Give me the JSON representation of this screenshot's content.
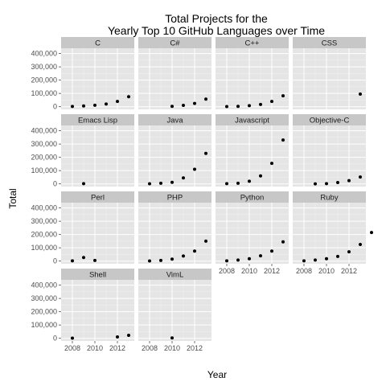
{
  "chart_data": {
    "type": "scatter",
    "title": "Total Projects for the\nYearly Top 10 GitHub Languages over Time",
    "xlabel": "Year",
    "ylabel": "Total",
    "xlim": [
      2007,
      2013.5
    ],
    "ylim": [
      -20000,
      440000
    ],
    "x_ticks": [
      2008,
      2010,
      2012
    ],
    "y_ticks": [
      0,
      100000,
      200000,
      300000,
      400000
    ],
    "y_tick_labels": [
      "0",
      "100,000",
      "200,000",
      "300,000",
      "400,000"
    ],
    "grid": true,
    "ncol": 4,
    "panels": [
      {
        "name": "C",
        "points": [
          [
            2008,
            2000
          ],
          [
            2009,
            6000
          ],
          [
            2010,
            11000
          ],
          [
            2011,
            20000
          ],
          [
            2012,
            40000
          ],
          [
            2013,
            75000
          ]
        ]
      },
      {
        "name": "C#",
        "points": [
          [
            2010,
            3000
          ],
          [
            2011,
            10000
          ],
          [
            2012,
            25000
          ],
          [
            2013,
            57000
          ]
        ]
      },
      {
        "name": "C++",
        "points": [
          [
            2008,
            1000
          ],
          [
            2009,
            3000
          ],
          [
            2010,
            8000
          ],
          [
            2011,
            17000
          ],
          [
            2012,
            40000
          ],
          [
            2013,
            82000
          ]
        ]
      },
      {
        "name": "CSS",
        "points": [
          [
            2013,
            95000
          ]
        ]
      },
      {
        "name": "Emacs Lisp",
        "points": [
          [
            2009,
            2000
          ]
        ]
      },
      {
        "name": "Java",
        "points": [
          [
            2008,
            1000
          ],
          [
            2009,
            5000
          ],
          [
            2010,
            12000
          ],
          [
            2011,
            45000
          ],
          [
            2012,
            110000
          ],
          [
            2013,
            230000
          ]
        ]
      },
      {
        "name": "Javascript",
        "points": [
          [
            2008,
            2000
          ],
          [
            2009,
            5000
          ],
          [
            2010,
            20000
          ],
          [
            2011,
            60000
          ],
          [
            2012,
            155000
          ],
          [
            2013,
            330000
          ]
        ]
      },
      {
        "name": "Objective-C",
        "points": [
          [
            2009,
            500
          ],
          [
            2010,
            2000
          ],
          [
            2011,
            10000
          ],
          [
            2012,
            25000
          ],
          [
            2013,
            52000
          ]
        ]
      },
      {
        "name": "Perl",
        "points": [
          [
            2008,
            2000
          ],
          [
            2009,
            27000
          ],
          [
            2010,
            5000
          ]
        ]
      },
      {
        "name": "PHP",
        "points": [
          [
            2008,
            1000
          ],
          [
            2009,
            5000
          ],
          [
            2010,
            15000
          ],
          [
            2011,
            38000
          ],
          [
            2012,
            75000
          ],
          [
            2013,
            150000
          ]
        ]
      },
      {
        "name": "Python",
        "points": [
          [
            2008,
            2000
          ],
          [
            2009,
            8000
          ],
          [
            2010,
            18000
          ],
          [
            2011,
            40000
          ],
          [
            2012,
            75000
          ],
          [
            2013,
            145000
          ]
        ]
      },
      {
        "name": "Ruby",
        "points": [
          [
            2008,
            2000
          ],
          [
            2009,
            8000
          ],
          [
            2010,
            18000
          ],
          [
            2011,
            35000
          ],
          [
            2012,
            70000
          ],
          [
            2013,
            125000
          ],
          [
            2014,
            215000
          ]
        ]
      },
      {
        "name": "Shell",
        "points": [
          [
            2008,
            1000
          ],
          [
            2012,
            10000
          ],
          [
            2013,
            22000
          ]
        ]
      },
      {
        "name": "VimL",
        "points": [
          [
            2010,
            3000
          ]
        ]
      }
    ]
  }
}
